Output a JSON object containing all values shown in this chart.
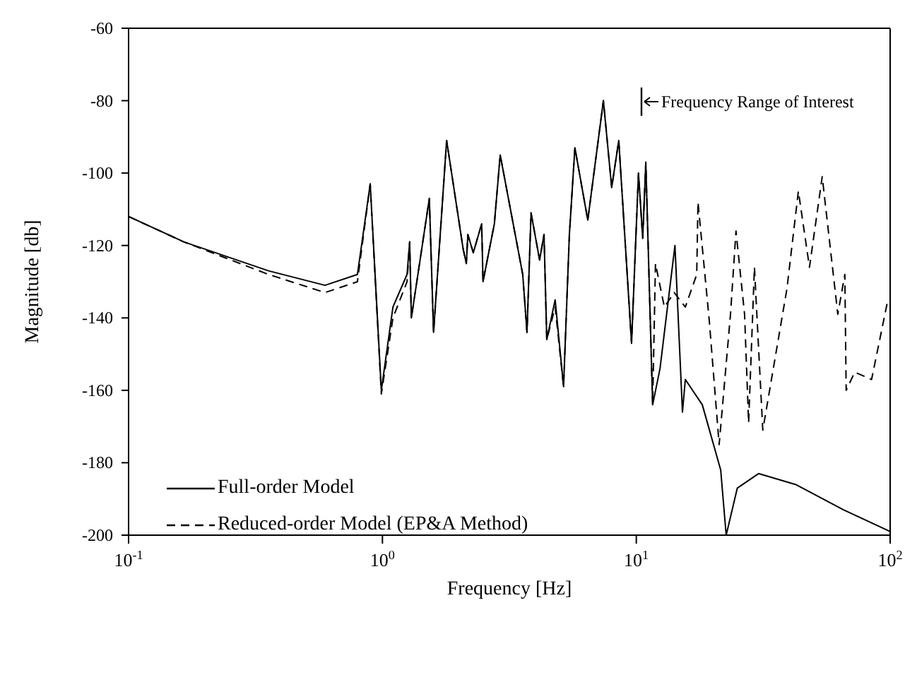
{
  "chart_data": {
    "type": "line",
    "xlabel": "Frequency [Hz]",
    "ylabel": "Magnitude [db]",
    "log": "x",
    "xlim": [
      0.1,
      100
    ],
    "ylim": [
      -200,
      -60
    ],
    "xticks": [
      {
        "value": 0.1,
        "label": "10$^{-1}$"
      },
      {
        "value": 1,
        "label": "10$^{0}$"
      },
      {
        "value": 10,
        "label": "10$^{1}$"
      },
      {
        "value": 100,
        "label": "10$^{2}$"
      }
    ],
    "yticks": [
      -60,
      -80,
      -100,
      -120,
      -140,
      -160,
      -180,
      -200
    ],
    "legend": "bottom left",
    "marker": "none",
    "annotations": [
      "Frequency Range of Interest"
    ],
    "series": [
      {
        "name": "Full-order Model",
        "color": "#000000",
        "line_style": "solid",
        "x": [
          0.1,
          0.165,
          0.356,
          0.594,
          0.797,
          0.895,
          0.99,
          1.1,
          1.25,
          1.28,
          1.3,
          1.4,
          1.53,
          1.59,
          1.79,
          2.08,
          2.14,
          2.17,
          2.28,
          2.46,
          2.49,
          2.76,
          2.91,
          3.57,
          3.71,
          3.85,
          4.16,
          4.33,
          4.44,
          4.79,
          5.17,
          5.45,
          5.73,
          6.44,
          7.42,
          8.0,
          8.53,
          9.58,
          10.2,
          10.6,
          10.9,
          11.6,
          12.4,
          14.2,
          15.2,
          15.6,
          18.2,
          21.5,
          22.6,
          25.0,
          30.3,
          42.4,
          65.5,
          100
        ],
        "values": [
          -112,
          -119,
          -127,
          -131,
          -128,
          -103,
          -160,
          -137,
          -128,
          -119,
          -140,
          -125,
          -107,
          -144,
          -91,
          -121,
          -125,
          -117,
          -122,
          -114,
          -130,
          -114,
          -95,
          -128,
          -144,
          -111,
          -124,
          -117,
          -146,
          -135,
          -159,
          -117,
          -93,
          -113,
          -80,
          -104,
          -91,
          -147,
          -100,
          -118,
          -97,
          -164,
          -154,
          -120,
          -166,
          -157,
          -164,
          -182,
          -200,
          -187,
          -183,
          -186,
          -193,
          -199
        ]
      },
      {
        "name": "Reduced-order Model (EP&A Method)",
        "color": "#000000",
        "line_style": "dashed",
        "x": [
          0.1,
          0.165,
          0.356,
          0.594,
          0.797,
          0.895,
          0.99,
          1.1,
          1.25,
          1.28,
          1.3,
          1.4,
          1.53,
          1.59,
          1.79,
          2.08,
          2.14,
          2.17,
          2.28,
          2.46,
          2.49,
          2.76,
          2.91,
          3.57,
          3.71,
          3.85,
          4.16,
          4.33,
          4.44,
          4.79,
          5.17,
          5.45,
          5.73,
          6.44,
          7.42,
          8.0,
          8.53,
          9.58,
          10.2,
          10.6,
          10.9,
          11.6,
          11.9,
          12.9,
          14.1,
          15.6,
          17.3,
          17.5,
          19.4,
          21.2,
          23.5,
          24.7,
          26.7,
          27.7,
          29.2,
          31.5,
          39.2,
          43.5,
          48.1,
          54.0,
          62.2,
          66.3,
          67.1,
          72.5,
          84.5,
          97.3
        ],
        "values": [
          -112,
          -119,
          -128,
          -133,
          -130,
          -103,
          -161,
          -140,
          -130,
          -119,
          -140,
          -125,
          -107,
          -144,
          -91,
          -121,
          -125,
          -117,
          -122,
          -114,
          -130,
          -114,
          -95,
          -128,
          -144,
          -111,
          -124,
          -117,
          -146,
          -137,
          -159,
          -117,
          -93,
          -113,
          -80,
          -104,
          -91,
          -147,
          -100,
          -118,
          -97,
          -164,
          -125,
          -137,
          -133,
          -137,
          -128,
          -108,
          -141,
          -175,
          -139,
          -116,
          -139,
          -169,
          -126,
          -171,
          -132,
          -105,
          -126,
          -101,
          -139,
          -128,
          -160,
          -155,
          -157,
          -136
        ]
      }
    ]
  }
}
